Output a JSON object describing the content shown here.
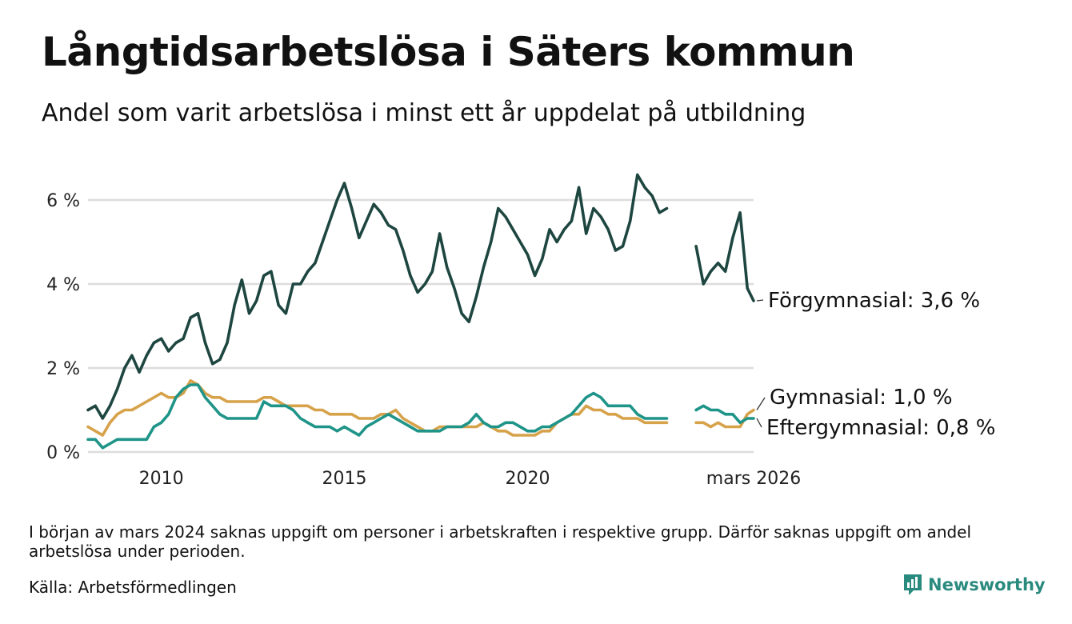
{
  "header": {
    "title": "Långtidsarbetslösa i Säters kommun",
    "subtitle": "Andel som varit arbetslösa i minst ett år uppdelat på utbildning"
  },
  "footer": {
    "note": "I början av mars 2024 saknas uppgift om personer i arbetskraften i respektive grupp. Därför saknas uppgift om andel arbetslösa under perioden.",
    "source": "Källa: Arbetsförmedlingen",
    "brand": "Newsworthy",
    "brand_color": "#2a8a7e"
  },
  "chart_data": {
    "type": "line",
    "title": "Långtidsarbetslösa i Säters kommun",
    "subtitle": "Andel som varit arbetslösa i minst ett år uppdelat på utbildning",
    "xlabel": "",
    "ylabel": "",
    "x_range": [
      2008.0,
      2026.17
    ],
    "xlim": [
      2008.0,
      2026.17
    ],
    "ylim": [
      0,
      7
    ],
    "grid": true,
    "yticks": [
      0,
      2,
      4,
      6
    ],
    "ytick_labels": [
      "0 %",
      "2 %",
      "4 %",
      "6 %"
    ],
    "xticks": [
      2010,
      2015,
      2020,
      2026.17
    ],
    "xtick_labels": [
      "2010",
      "2015",
      "2020",
      "mars 2026"
    ],
    "gap": [
      2024.2,
      2024.4
    ],
    "series": [
      {
        "name": "Förgymnasial",
        "end_label": "Förgymnasial: 3,6 %",
        "color": "#1e4640",
        "points": [
          [
            2008.0,
            1.0
          ],
          [
            2008.2,
            1.1
          ],
          [
            2008.4,
            0.8
          ],
          [
            2008.6,
            1.1
          ],
          [
            2008.8,
            1.5
          ],
          [
            2009.0,
            2.0
          ],
          [
            2009.2,
            2.3
          ],
          [
            2009.4,
            1.9
          ],
          [
            2009.6,
            2.3
          ],
          [
            2009.8,
            2.6
          ],
          [
            2010.0,
            2.7
          ],
          [
            2010.2,
            2.4
          ],
          [
            2010.4,
            2.6
          ],
          [
            2010.6,
            2.7
          ],
          [
            2010.8,
            3.2
          ],
          [
            2011.0,
            3.3
          ],
          [
            2011.2,
            2.6
          ],
          [
            2011.4,
            2.1
          ],
          [
            2011.6,
            2.2
          ],
          [
            2011.8,
            2.6
          ],
          [
            2012.0,
            3.5
          ],
          [
            2012.2,
            4.1
          ],
          [
            2012.4,
            3.3
          ],
          [
            2012.6,
            3.6
          ],
          [
            2012.8,
            4.2
          ],
          [
            2013.0,
            4.3
          ],
          [
            2013.2,
            3.5
          ],
          [
            2013.4,
            3.3
          ],
          [
            2013.6,
            4.0
          ],
          [
            2013.8,
            4.0
          ],
          [
            2014.0,
            4.3
          ],
          [
            2014.2,
            4.5
          ],
          [
            2014.4,
            5.0
          ],
          [
            2014.6,
            5.5
          ],
          [
            2014.8,
            6.0
          ],
          [
            2015.0,
            6.4
          ],
          [
            2015.2,
            5.8
          ],
          [
            2015.4,
            5.1
          ],
          [
            2015.6,
            5.5
          ],
          [
            2015.8,
            5.9
          ],
          [
            2016.0,
            5.7
          ],
          [
            2016.2,
            5.4
          ],
          [
            2016.4,
            5.3
          ],
          [
            2016.6,
            4.8
          ],
          [
            2016.8,
            4.2
          ],
          [
            2017.0,
            3.8
          ],
          [
            2017.2,
            4.0
          ],
          [
            2017.4,
            4.3
          ],
          [
            2017.6,
            5.2
          ],
          [
            2017.8,
            4.4
          ],
          [
            2018.0,
            3.9
          ],
          [
            2018.2,
            3.3
          ],
          [
            2018.4,
            3.1
          ],
          [
            2018.6,
            3.7
          ],
          [
            2018.8,
            4.4
          ],
          [
            2019.0,
            5.0
          ],
          [
            2019.2,
            5.8
          ],
          [
            2019.4,
            5.6
          ],
          [
            2019.6,
            5.3
          ],
          [
            2019.8,
            5.0
          ],
          [
            2020.0,
            4.7
          ],
          [
            2020.2,
            4.2
          ],
          [
            2020.4,
            4.6
          ],
          [
            2020.6,
            5.3
          ],
          [
            2020.8,
            5.0
          ],
          [
            2021.0,
            5.3
          ],
          [
            2021.2,
            5.5
          ],
          [
            2021.4,
            6.3
          ],
          [
            2021.6,
            5.2
          ],
          [
            2021.8,
            5.8
          ],
          [
            2022.0,
            5.6
          ],
          [
            2022.2,
            5.3
          ],
          [
            2022.4,
            4.8
          ],
          [
            2022.6,
            4.9
          ],
          [
            2022.8,
            5.5
          ],
          [
            2023.0,
            6.6
          ],
          [
            2023.2,
            6.3
          ],
          [
            2023.4,
            6.1
          ],
          [
            2023.6,
            5.7
          ],
          [
            2023.8,
            5.8
          ],
          [
            2024.6,
            4.9
          ],
          [
            2024.8,
            4.0
          ],
          [
            2025.0,
            4.3
          ],
          [
            2025.2,
            4.5
          ],
          [
            2025.4,
            4.3
          ],
          [
            2025.6,
            5.1
          ],
          [
            2025.8,
            5.7
          ],
          [
            2026.0,
            3.9
          ],
          [
            2026.17,
            3.6
          ]
        ]
      },
      {
        "name": "Gymnasial",
        "end_label": "Gymnasial: 1,0 %",
        "color": "#d6a24a",
        "points": [
          [
            2008.0,
            0.6
          ],
          [
            2008.2,
            0.5
          ],
          [
            2008.4,
            0.4
          ],
          [
            2008.6,
            0.7
          ],
          [
            2008.8,
            0.9
          ],
          [
            2009.0,
            1.0
          ],
          [
            2009.2,
            1.0
          ],
          [
            2009.4,
            1.1
          ],
          [
            2009.6,
            1.2
          ],
          [
            2009.8,
            1.3
          ],
          [
            2010.0,
            1.4
          ],
          [
            2010.2,
            1.3
          ],
          [
            2010.4,
            1.3
          ],
          [
            2010.6,
            1.4
          ],
          [
            2010.8,
            1.7
          ],
          [
            2011.0,
            1.6
          ],
          [
            2011.2,
            1.4
          ],
          [
            2011.4,
            1.3
          ],
          [
            2011.6,
            1.3
          ],
          [
            2011.8,
            1.2
          ],
          [
            2012.0,
            1.2
          ],
          [
            2012.2,
            1.2
          ],
          [
            2012.4,
            1.2
          ],
          [
            2012.6,
            1.2
          ],
          [
            2012.8,
            1.3
          ],
          [
            2013.0,
            1.3
          ],
          [
            2013.2,
            1.2
          ],
          [
            2013.4,
            1.1
          ],
          [
            2013.6,
            1.1
          ],
          [
            2013.8,
            1.1
          ],
          [
            2014.0,
            1.1
          ],
          [
            2014.2,
            1.0
          ],
          [
            2014.4,
            1.0
          ],
          [
            2014.6,
            0.9
          ],
          [
            2014.8,
            0.9
          ],
          [
            2015.0,
            0.9
          ],
          [
            2015.2,
            0.9
          ],
          [
            2015.4,
            0.8
          ],
          [
            2015.6,
            0.8
          ],
          [
            2015.8,
            0.8
          ],
          [
            2016.0,
            0.9
          ],
          [
            2016.2,
            0.9
          ],
          [
            2016.4,
            1.0
          ],
          [
            2016.6,
            0.8
          ],
          [
            2016.8,
            0.7
          ],
          [
            2017.0,
            0.6
          ],
          [
            2017.2,
            0.5
          ],
          [
            2017.4,
            0.5
          ],
          [
            2017.6,
            0.6
          ],
          [
            2017.8,
            0.6
          ],
          [
            2018.0,
            0.6
          ],
          [
            2018.2,
            0.6
          ],
          [
            2018.4,
            0.6
          ],
          [
            2018.6,
            0.6
          ],
          [
            2018.8,
            0.7
          ],
          [
            2019.0,
            0.6
          ],
          [
            2019.2,
            0.5
          ],
          [
            2019.4,
            0.5
          ],
          [
            2019.6,
            0.4
          ],
          [
            2019.8,
            0.4
          ],
          [
            2020.0,
            0.4
          ],
          [
            2020.2,
            0.4
          ],
          [
            2020.4,
            0.5
          ],
          [
            2020.6,
            0.5
          ],
          [
            2020.8,
            0.7
          ],
          [
            2021.0,
            0.8
          ],
          [
            2021.2,
            0.9
          ],
          [
            2021.4,
            0.9
          ],
          [
            2021.6,
            1.1
          ],
          [
            2021.8,
            1.0
          ],
          [
            2022.0,
            1.0
          ],
          [
            2022.2,
            0.9
          ],
          [
            2022.4,
            0.9
          ],
          [
            2022.6,
            0.8
          ],
          [
            2022.8,
            0.8
          ],
          [
            2023.0,
            0.8
          ],
          [
            2023.2,
            0.7
          ],
          [
            2023.4,
            0.7
          ],
          [
            2023.6,
            0.7
          ],
          [
            2023.8,
            0.7
          ],
          [
            2024.6,
            0.7
          ],
          [
            2024.8,
            0.7
          ],
          [
            2025.0,
            0.6
          ],
          [
            2025.2,
            0.7
          ],
          [
            2025.4,
            0.6
          ],
          [
            2025.6,
            0.6
          ],
          [
            2025.8,
            0.6
          ],
          [
            2026.0,
            0.9
          ],
          [
            2026.17,
            1.0
          ]
        ]
      },
      {
        "name": "Eftergymnasial",
        "end_label": "Eftergymnasial: 0,8 %",
        "color": "#1f9488",
        "points": [
          [
            2008.0,
            0.3
          ],
          [
            2008.2,
            0.3
          ],
          [
            2008.4,
            0.1
          ],
          [
            2008.6,
            0.2
          ],
          [
            2008.8,
            0.3
          ],
          [
            2009.0,
            0.3
          ],
          [
            2009.2,
            0.3
          ],
          [
            2009.4,
            0.3
          ],
          [
            2009.6,
            0.3
          ],
          [
            2009.8,
            0.6
          ],
          [
            2010.0,
            0.7
          ],
          [
            2010.2,
            0.9
          ],
          [
            2010.4,
            1.3
          ],
          [
            2010.6,
            1.5
          ],
          [
            2010.8,
            1.6
          ],
          [
            2011.0,
            1.6
          ],
          [
            2011.2,
            1.3
          ],
          [
            2011.4,
            1.1
          ],
          [
            2011.6,
            0.9
          ],
          [
            2011.8,
            0.8
          ],
          [
            2012.0,
            0.8
          ],
          [
            2012.2,
            0.8
          ],
          [
            2012.4,
            0.8
          ],
          [
            2012.6,
            0.8
          ],
          [
            2012.8,
            1.2
          ],
          [
            2013.0,
            1.1
          ],
          [
            2013.2,
            1.1
          ],
          [
            2013.4,
            1.1
          ],
          [
            2013.6,
            1.0
          ],
          [
            2013.8,
            0.8
          ],
          [
            2014.0,
            0.7
          ],
          [
            2014.2,
            0.6
          ],
          [
            2014.4,
            0.6
          ],
          [
            2014.6,
            0.6
          ],
          [
            2014.8,
            0.5
          ],
          [
            2015.0,
            0.6
          ],
          [
            2015.2,
            0.5
          ],
          [
            2015.4,
            0.4
          ],
          [
            2015.6,
            0.6
          ],
          [
            2015.8,
            0.7
          ],
          [
            2016.0,
            0.8
          ],
          [
            2016.2,
            0.9
          ],
          [
            2016.4,
            0.8
          ],
          [
            2016.6,
            0.7
          ],
          [
            2016.8,
            0.6
          ],
          [
            2017.0,
            0.5
          ],
          [
            2017.2,
            0.5
          ],
          [
            2017.4,
            0.5
          ],
          [
            2017.6,
            0.5
          ],
          [
            2017.8,
            0.6
          ],
          [
            2018.0,
            0.6
          ],
          [
            2018.2,
            0.6
          ],
          [
            2018.4,
            0.7
          ],
          [
            2018.6,
            0.9
          ],
          [
            2018.8,
            0.7
          ],
          [
            2019.0,
            0.6
          ],
          [
            2019.2,
            0.6
          ],
          [
            2019.4,
            0.7
          ],
          [
            2019.6,
            0.7
          ],
          [
            2019.8,
            0.6
          ],
          [
            2020.0,
            0.5
          ],
          [
            2020.2,
            0.5
          ],
          [
            2020.4,
            0.6
          ],
          [
            2020.6,
            0.6
          ],
          [
            2020.8,
            0.7
          ],
          [
            2021.0,
            0.8
          ],
          [
            2021.2,
            0.9
          ],
          [
            2021.4,
            1.1
          ],
          [
            2021.6,
            1.3
          ],
          [
            2021.8,
            1.4
          ],
          [
            2022.0,
            1.3
          ],
          [
            2022.2,
            1.1
          ],
          [
            2022.4,
            1.1
          ],
          [
            2022.6,
            1.1
          ],
          [
            2022.8,
            1.1
          ],
          [
            2023.0,
            0.9
          ],
          [
            2023.2,
            0.8
          ],
          [
            2023.4,
            0.8
          ],
          [
            2023.6,
            0.8
          ],
          [
            2023.8,
            0.8
          ],
          [
            2024.6,
            1.0
          ],
          [
            2024.8,
            1.1
          ],
          [
            2025.0,
            1.0
          ],
          [
            2025.2,
            1.0
          ],
          [
            2025.4,
            0.9
          ],
          [
            2025.6,
            0.9
          ],
          [
            2025.8,
            0.7
          ],
          [
            2026.0,
            0.8
          ],
          [
            2026.17,
            0.8
          ]
        ]
      }
    ]
  }
}
